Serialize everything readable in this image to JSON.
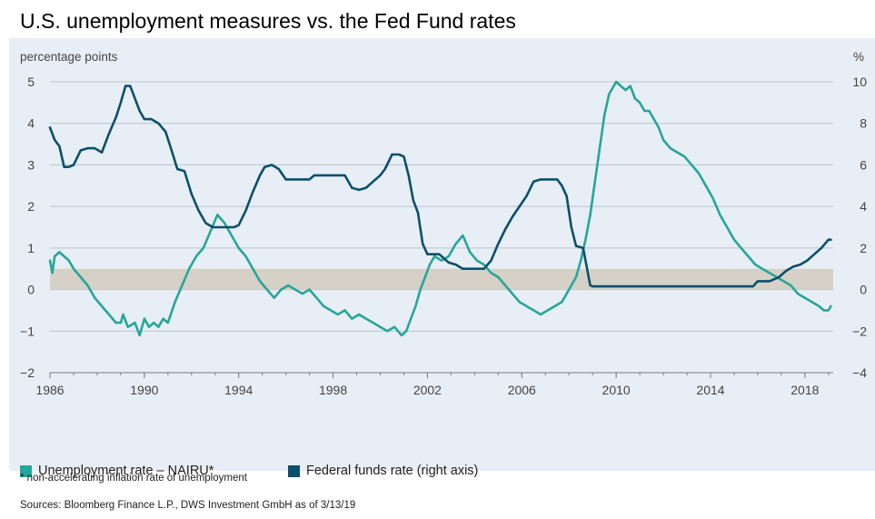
{
  "title": "U.S. unemployment measures vs. the Fed Fund rates",
  "footnote": "* non-accelerating inflation rate of unemployment",
  "source": "Sources: Bloomberg Finance L.P., DWS Investment GmbH as of 3/13/19",
  "colors": {
    "nairu": "#26a69a",
    "fedfunds": "#0b4f6c",
    "band": "#d6d1c6",
    "panel": "#e8eef5",
    "grid": "#b9c4cf"
  },
  "chart_data": {
    "type": "line",
    "ylabel_left": "percentage points",
    "ylabel_right": "%",
    "xlim": [
      1986,
      2019.2
    ],
    "ylim_left": [
      -2,
      5
    ],
    "ylim_right": [
      -4,
      10
    ],
    "x_ticks": [
      "1986",
      "1990",
      "1994",
      "1998",
      "2002",
      "2006",
      "2010",
      "2014",
      "2018"
    ],
    "y_ticks_left": [
      "5",
      "4",
      "3",
      "2",
      "1",
      "0",
      "−1",
      "−2"
    ],
    "y_ticks_right": [
      "10",
      "8",
      "6",
      "4",
      "2",
      "0",
      "−2",
      "−4"
    ],
    "grid": true,
    "legend_position": "bottom",
    "band": {
      "y_from": 0,
      "y_to": 0.5,
      "axis": "left"
    },
    "series": [
      {
        "name": "Unemployment rate – NAIRU*",
        "axis": "left",
        "color": "#26a69a",
        "x": [
          1986.0,
          1986.1,
          1986.2,
          1986.4,
          1986.6,
          1986.8,
          1987.0,
          1987.3,
          1987.6,
          1987.9,
          1988.2,
          1988.5,
          1988.8,
          1989.0,
          1989.1,
          1989.3,
          1989.6,
          1989.8,
          1990.0,
          1990.2,
          1990.4,
          1990.6,
          1990.8,
          1991.0,
          1991.3,
          1991.6,
          1991.9,
          1992.2,
          1992.5,
          1992.8,
          1993.1,
          1993.4,
          1993.7,
          1994.0,
          1994.3,
          1994.6,
          1994.9,
          1995.2,
          1995.5,
          1995.8,
          1996.1,
          1996.4,
          1996.7,
          1997.0,
          1997.3,
          1997.6,
          1997.9,
          1998.2,
          1998.5,
          1998.8,
          1999.1,
          1999.4,
          1999.7,
          2000.0,
          2000.3,
          2000.6,
          2000.9,
          2001.1,
          2001.3,
          2001.5,
          2001.7,
          2001.9,
          2002.1,
          2002.3,
          2002.6,
          2002.9,
          2003.2,
          2003.5,
          2003.8,
          2004.1,
          2004.4,
          2004.7,
          2005.0,
          2005.3,
          2005.6,
          2005.9,
          2006.2,
          2006.5,
          2006.8,
          2007.1,
          2007.4,
          2007.7,
          2008.0,
          2008.3,
          2008.5,
          2008.7,
          2008.9,
          2009.1,
          2009.3,
          2009.5,
          2009.7,
          2009.9,
          2010.0,
          2010.2,
          2010.4,
          2010.6,
          2010.8,
          2011.0,
          2011.2,
          2011.4,
          2011.6,
          2011.8,
          2012.0,
          2012.3,
          2012.6,
          2012.9,
          2013.2,
          2013.5,
          2013.8,
          2014.1,
          2014.4,
          2014.7,
          2015.0,
          2015.3,
          2015.6,
          2015.9,
          2016.2,
          2016.5,
          2016.8,
          2017.1,
          2017.4,
          2017.7,
          2018.0,
          2018.3,
          2018.6,
          2018.8,
          2019.0,
          2019.1
        ],
        "y": [
          0.7,
          0.4,
          0.8,
          0.9,
          0.8,
          0.7,
          0.5,
          0.3,
          0.1,
          -0.2,
          -0.4,
          -0.6,
          -0.8,
          -0.8,
          -0.6,
          -0.9,
          -0.8,
          -1.1,
          -0.7,
          -0.9,
          -0.8,
          -0.9,
          -0.7,
          -0.8,
          -0.3,
          0.1,
          0.5,
          0.8,
          1.0,
          1.4,
          1.8,
          1.6,
          1.3,
          1.0,
          0.8,
          0.5,
          0.2,
          0.0,
          -0.2,
          0.0,
          0.1,
          0.0,
          -0.1,
          0.0,
          -0.2,
          -0.4,
          -0.5,
          -0.6,
          -0.5,
          -0.7,
          -0.6,
          -0.7,
          -0.8,
          -0.9,
          -1.0,
          -0.9,
          -1.1,
          -1.0,
          -0.7,
          -0.4,
          0.0,
          0.3,
          0.6,
          0.8,
          0.7,
          0.8,
          1.1,
          1.3,
          0.9,
          0.7,
          0.6,
          0.4,
          0.3,
          0.1,
          -0.1,
          -0.3,
          -0.4,
          -0.5,
          -0.6,
          -0.5,
          -0.4,
          -0.3,
          0.0,
          0.3,
          0.7,
          1.2,
          1.8,
          2.6,
          3.4,
          4.2,
          4.7,
          4.9,
          5.0,
          4.9,
          4.8,
          4.9,
          4.6,
          4.5,
          4.3,
          4.3,
          4.1,
          3.9,
          3.6,
          3.4,
          3.3,
          3.2,
          3.0,
          2.8,
          2.5,
          2.2,
          1.8,
          1.5,
          1.2,
          1.0,
          0.8,
          0.6,
          0.5,
          0.4,
          0.3,
          0.2,
          0.1,
          -0.1,
          -0.2,
          -0.3,
          -0.4,
          -0.5,
          -0.5,
          -0.4
        ]
      },
      {
        "name": "Federal funds rate (right axis)",
        "axis": "right",
        "color": "#0b4f6c",
        "x": [
          1986.0,
          1986.2,
          1986.4,
          1986.6,
          1986.8,
          1987.0,
          1987.3,
          1987.6,
          1987.9,
          1988.2,
          1988.5,
          1988.8,
          1989.0,
          1989.2,
          1989.4,
          1989.6,
          1989.8,
          1990.0,
          1990.3,
          1990.6,
          1990.9,
          1991.1,
          1991.4,
          1991.7,
          1992.0,
          1992.3,
          1992.6,
          1992.9,
          1993.2,
          1993.5,
          1993.8,
          1994.0,
          1994.3,
          1994.6,
          1994.9,
          1995.1,
          1995.4,
          1995.7,
          1996.0,
          1996.5,
          1997.0,
          1997.2,
          1997.5,
          1998.0,
          1998.5,
          1998.8,
          1999.1,
          1999.4,
          1999.7,
          2000.0,
          2000.2,
          2000.5,
          2000.8,
          2001.0,
          2001.2,
          2001.4,
          2001.6,
          2001.8,
          2002.0,
          2002.5,
          2002.9,
          2003.2,
          2003.5,
          2004.0,
          2004.4,
          2004.7,
          2005.0,
          2005.3,
          2005.6,
          2005.9,
          2006.2,
          2006.5,
          2006.8,
          2007.0,
          2007.5,
          2007.7,
          2007.9,
          2008.1,
          2008.3,
          2008.6,
          2008.9,
          2009.0,
          2010.0,
          2012.0,
          2014.0,
          2015.8,
          2016.0,
          2016.5,
          2016.9,
          2017.2,
          2017.5,
          2017.8,
          2018.1,
          2018.4,
          2018.7,
          2019.0,
          2019.1
        ],
        "y": [
          7.8,
          7.2,
          6.9,
          5.9,
          5.9,
          6.0,
          6.7,
          6.8,
          6.8,
          6.6,
          7.5,
          8.3,
          9.0,
          9.8,
          9.8,
          9.2,
          8.6,
          8.2,
          8.2,
          8.0,
          7.6,
          6.9,
          5.8,
          5.7,
          4.6,
          3.8,
          3.2,
          3.0,
          3.0,
          3.0,
          3.0,
          3.1,
          3.8,
          4.7,
          5.5,
          5.9,
          6.0,
          5.8,
          5.3,
          5.3,
          5.3,
          5.5,
          5.5,
          5.5,
          5.5,
          4.9,
          4.8,
          4.9,
          5.2,
          5.5,
          5.8,
          6.5,
          6.5,
          6.4,
          5.5,
          4.3,
          3.7,
          2.2,
          1.7,
          1.7,
          1.3,
          1.2,
          1.0,
          1.0,
          1.0,
          1.4,
          2.2,
          2.9,
          3.5,
          4.0,
          4.5,
          5.2,
          5.3,
          5.3,
          5.3,
          5.0,
          4.5,
          3.0,
          2.1,
          2.0,
          0.2,
          0.15,
          0.15,
          0.15,
          0.15,
          0.15,
          0.4,
          0.4,
          0.6,
          0.9,
          1.1,
          1.2,
          1.4,
          1.7,
          2.0,
          2.4,
          2.4
        ]
      }
    ]
  }
}
